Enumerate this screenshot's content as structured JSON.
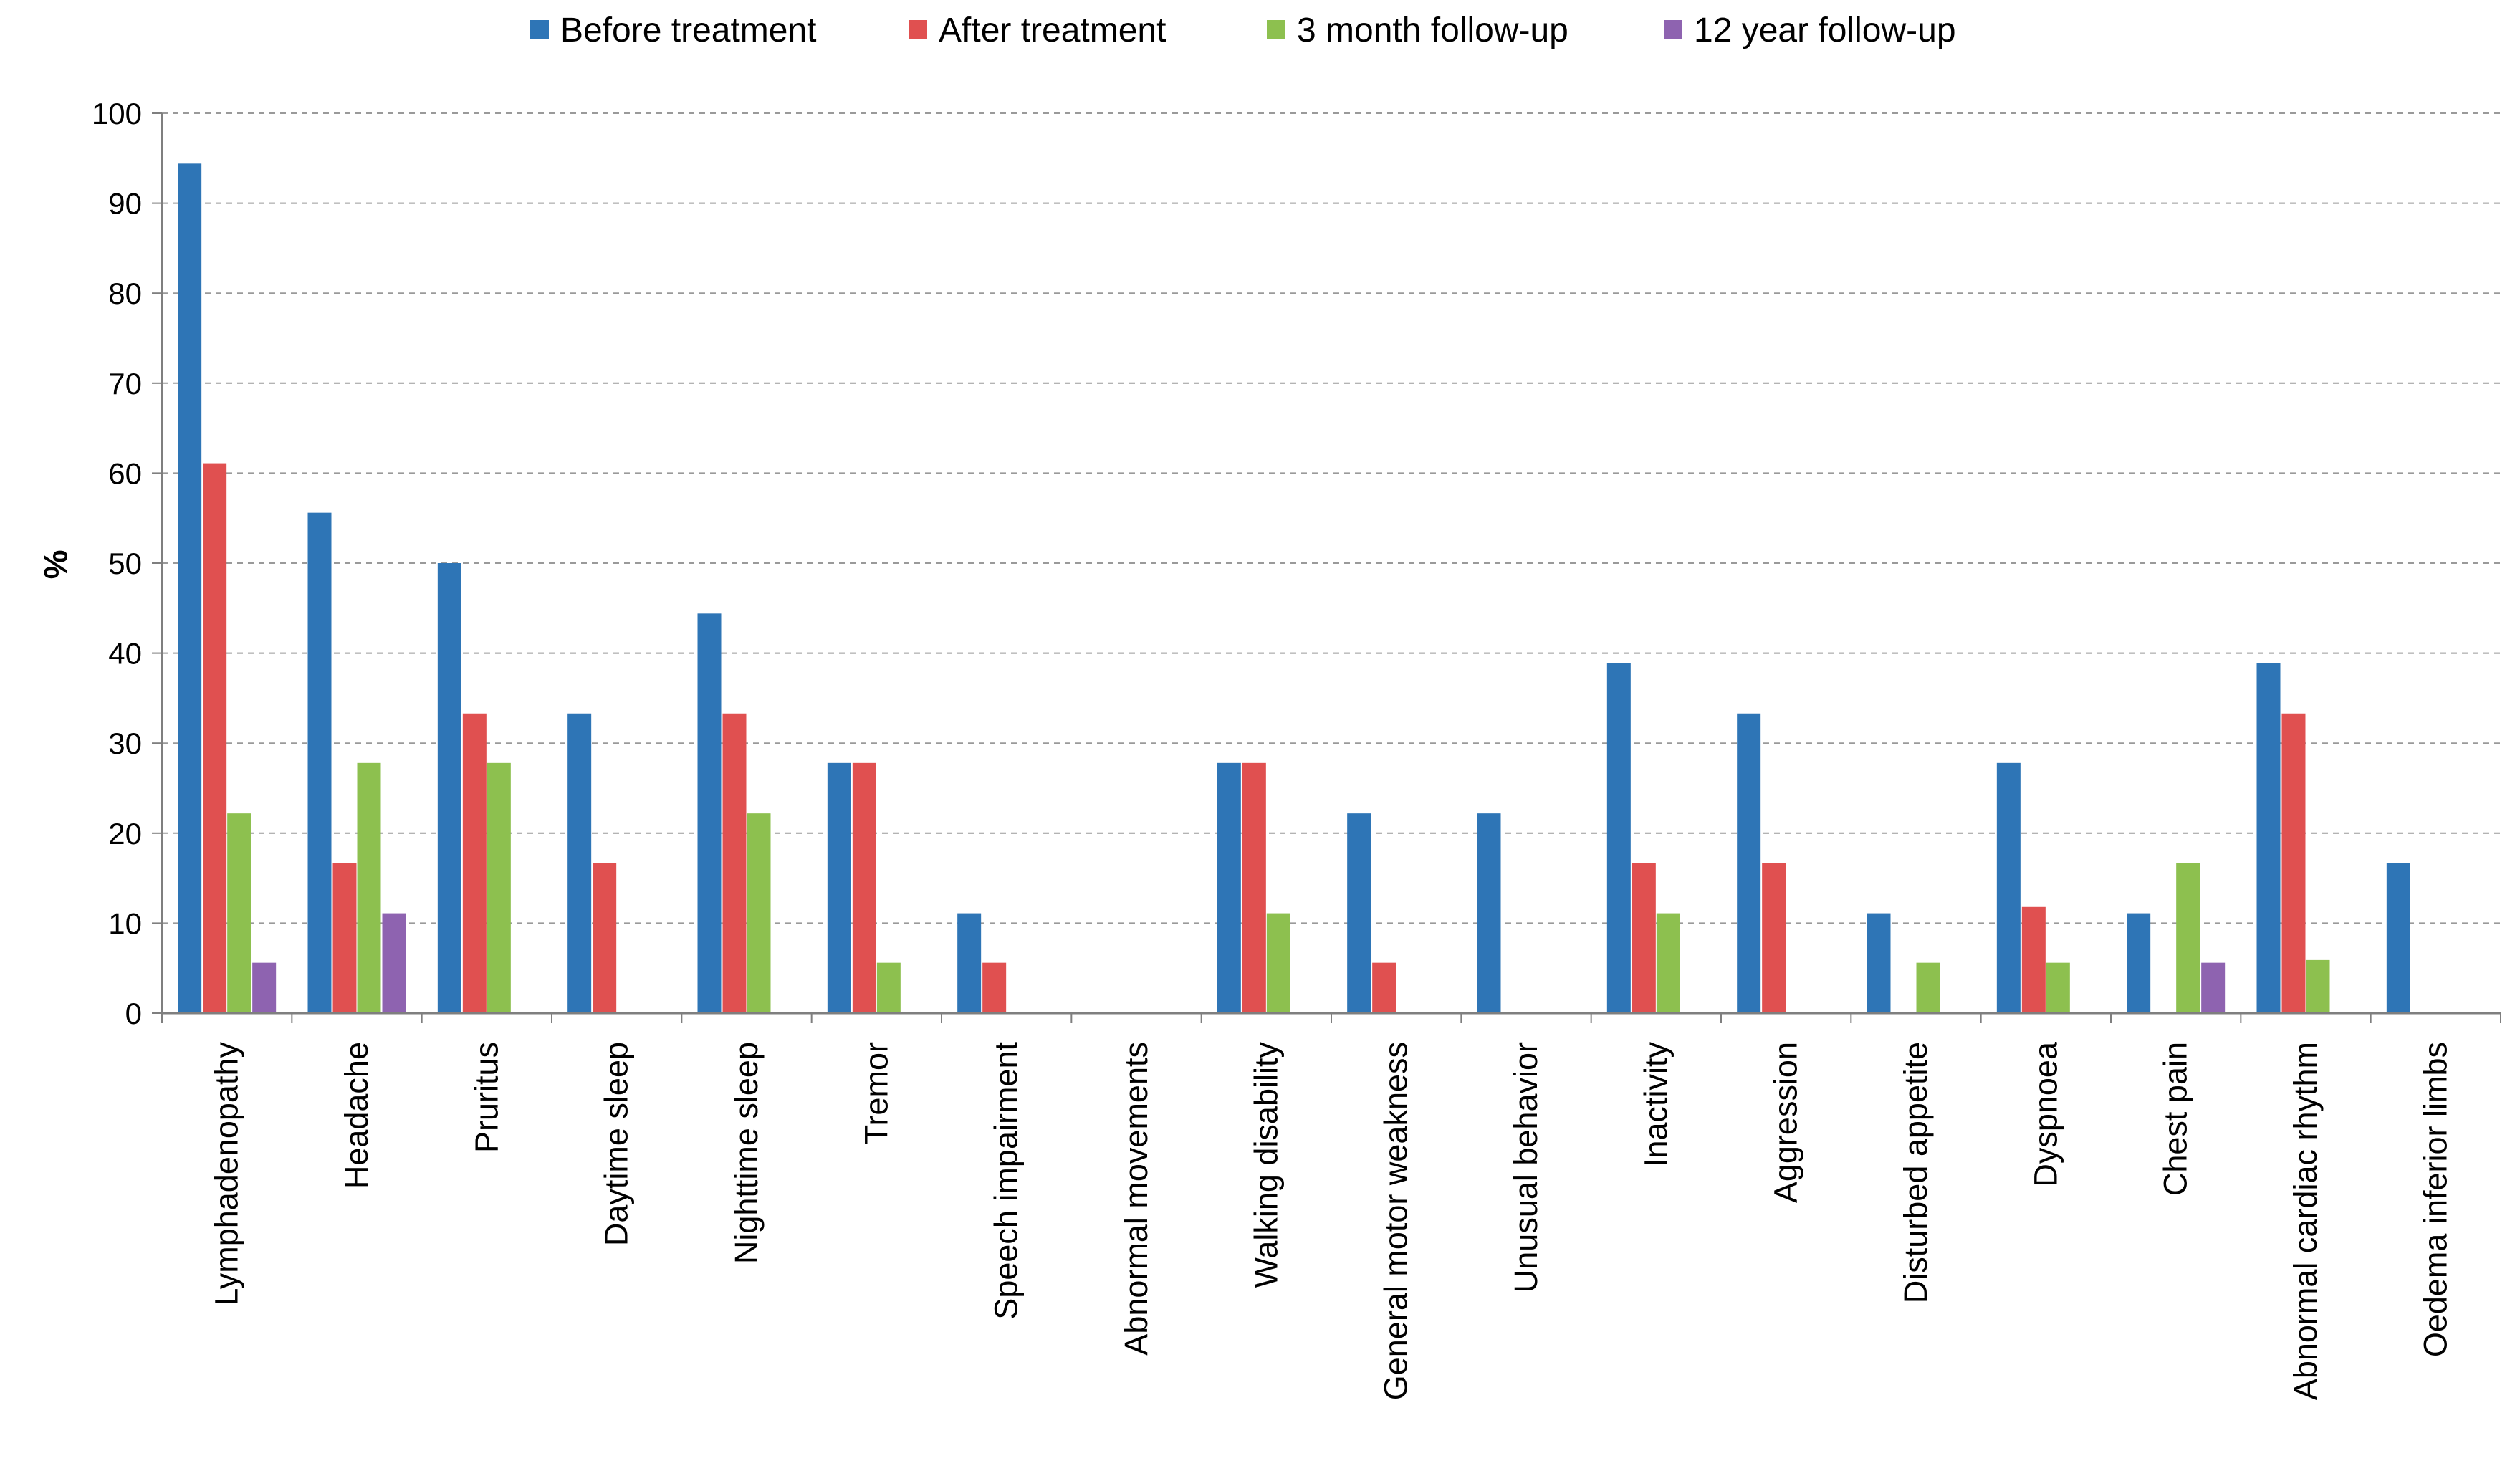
{
  "chart_data": {
    "type": "bar",
    "title": "",
    "xlabel": "",
    "ylabel": "%",
    "ylim": [
      0,
      100
    ],
    "yticks": [
      0,
      10,
      20,
      30,
      40,
      50,
      60,
      70,
      80,
      90,
      100
    ],
    "grid": "horizontal dashed",
    "legend_position": "top",
    "categories": [
      "Lymphadenopathy",
      "Headache",
      "Pruritus",
      "Daytime sleep",
      "Nighttime sleep",
      "Tremor",
      "Speech impairment",
      "Abnormal movements",
      "Walking disability",
      "General motor weakness",
      "Unusual behavior",
      "Inactivity",
      "Aggression",
      "Disturbed appetite",
      "Dyspnoea",
      "Chest pain",
      "Abnormal cardiac rhythm",
      "Oedema inferior limbs"
    ],
    "series": [
      {
        "name": "Before treatment",
        "color": "#2E75B6",
        "values": [
          94.4,
          55.6,
          50.0,
          33.3,
          44.4,
          27.8,
          11.1,
          0,
          27.8,
          22.2,
          22.2,
          38.9,
          33.3,
          11.1,
          27.8,
          11.1,
          38.9,
          16.7
        ]
      },
      {
        "name": "After treatment",
        "color": "#E05050",
        "values": [
          61.1,
          16.7,
          33.3,
          16.7,
          33.3,
          27.8,
          5.6,
          0,
          27.8,
          5.6,
          0,
          16.7,
          16.7,
          0,
          11.8,
          0,
          33.3,
          0
        ]
      },
      {
        "name": "3 month follow-up",
        "color": "#8DC04F",
        "values": [
          22.2,
          27.8,
          27.8,
          0,
          22.2,
          5.6,
          0,
          0,
          11.1,
          0,
          0,
          11.1,
          0,
          5.6,
          5.6,
          16.7,
          5.9,
          0
        ]
      },
      {
        "name": "12 year follow-up",
        "color": "#8E63B0",
        "values": [
          5.6,
          11.1,
          0,
          0,
          0,
          0,
          0,
          0,
          0,
          0,
          0,
          0,
          0,
          0,
          0,
          5.6,
          0,
          0
        ]
      }
    ]
  }
}
